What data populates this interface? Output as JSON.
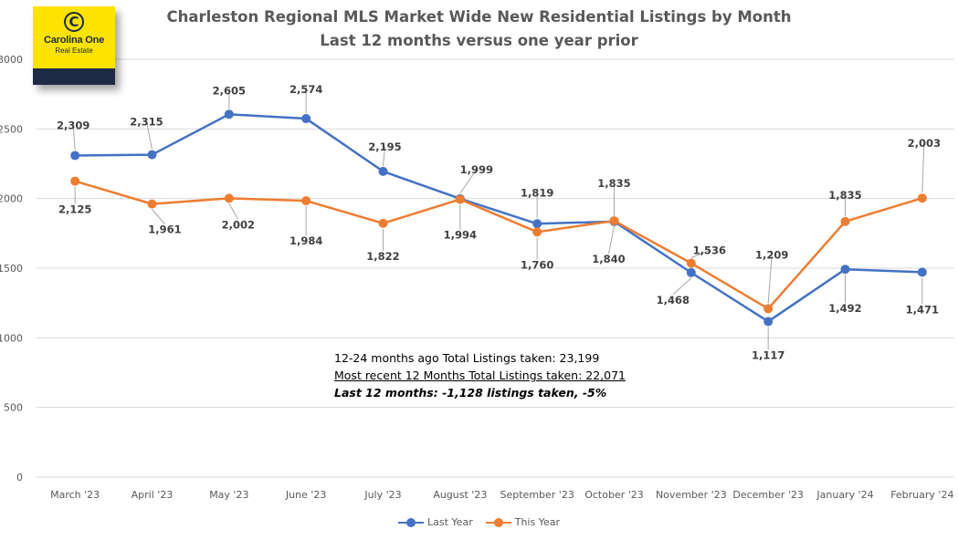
{
  "title": "Charleston Regional MLS Market Wide New Residential Listings by Month",
  "subtitle": "Last 12 months versus one year prior",
  "logo": {
    "name": "Carolina One",
    "sub": "Real Estate",
    "mark": "C"
  },
  "colors": {
    "last_year": "#4472c4",
    "this_year": "#ed7d31",
    "grid": "#d9d9d9",
    "text": "#595959"
  },
  "summary": {
    "line1": "12-24 months ago Total Listings taken: 23,199",
    "line2": "Most recent 12 Months Total Listings taken: 22,071",
    "line3": "Last 12 months: -1,128 listings taken, -5%"
  },
  "chart_data": {
    "type": "line",
    "title": "Charleston Regional MLS Market Wide New Residential Listings by Month",
    "subtitle": "Last 12 months versus one year prior",
    "categories": [
      "March '23",
      "April '23",
      "May '23",
      "June '23",
      "July '23",
      "August '23",
      "September '23",
      "October '23",
      "November '23",
      "December '23",
      "January '24",
      "February '24"
    ],
    "ylim": [
      0,
      3000
    ],
    "yticks": [
      0,
      500,
      1000,
      1500,
      2000,
      2500,
      3000
    ],
    "grid": true,
    "legend": "bottom",
    "series": [
      {
        "name": "Last Year",
        "values": [
          2309,
          2315,
          2605,
          2574,
          2195,
          1999,
          1819,
          1835,
          1468,
          1117,
          1492,
          1471
        ],
        "labels": [
          "2,309",
          "2,315",
          "2,605",
          "2,574",
          "2,195",
          "1,999",
          "1,819",
          "1,835",
          "1,468",
          "1,117",
          "1,492",
          "1,471"
        ]
      },
      {
        "name": "This Year",
        "values": [
          2125,
          1961,
          2002,
          1984,
          1822,
          1994,
          1760,
          1840,
          1536,
          1209,
          1835,
          2003
        ],
        "labels": [
          "2,125",
          "1,961",
          "2,002",
          "1,984",
          "1,822",
          "1,994",
          "1,760",
          "1,840",
          "1,536",
          "1,209",
          "1,835",
          "2,003"
        ]
      }
    ]
  }
}
